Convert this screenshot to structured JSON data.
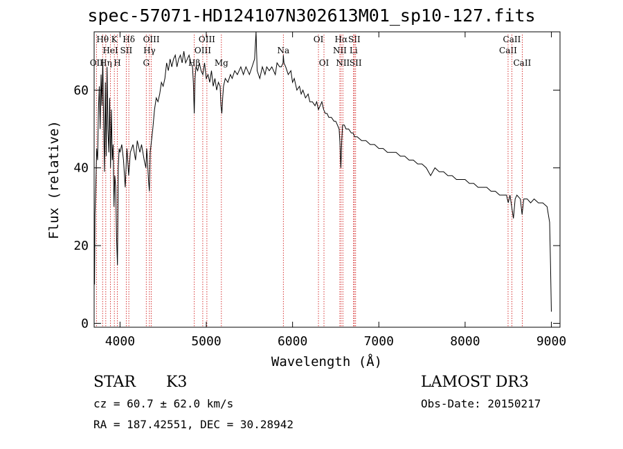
{
  "title": "spec-57071-HD124107N302613M01_sp10-127.fits",
  "chart_data": {
    "type": "line",
    "xlabel": "Wavelength (Å)",
    "ylabel": "Flux (relative)",
    "xlim": [
      3700,
      9100
    ],
    "ylim": [
      -1,
      75
    ],
    "xticks": [
      4000,
      5000,
      6000,
      7000,
      8000,
      9000
    ],
    "yticks": [
      0,
      20,
      40,
      60
    ],
    "series": [
      {
        "name": "spectrum",
        "points": [
          [
            3700,
            22
          ],
          [
            3705,
            10
          ],
          [
            3710,
            28
          ],
          [
            3720,
            36
          ],
          [
            3730,
            45
          ],
          [
            3740,
            42
          ],
          [
            3750,
            55
          ],
          [
            3760,
            61
          ],
          [
            3770,
            50
          ],
          [
            3780,
            64
          ],
          [
            3790,
            56
          ],
          [
            3800,
            68
          ],
          [
            3810,
            52
          ],
          [
            3820,
            39
          ],
          [
            3830,
            62
          ],
          [
            3840,
            43
          ],
          [
            3850,
            66
          ],
          [
            3860,
            50
          ],
          [
            3870,
            44
          ],
          [
            3880,
            58
          ],
          [
            3890,
            40
          ],
          [
            3900,
            55
          ],
          [
            3910,
            42
          ],
          [
            3920,
            46
          ],
          [
            3930,
            30
          ],
          [
            3940,
            38
          ],
          [
            3950,
            35
          ],
          [
            3960,
            22
          ],
          [
            3970,
            15
          ],
          [
            3980,
            40
          ],
          [
            3990,
            45
          ],
          [
            4000,
            44
          ],
          [
            4020,
            46
          ],
          [
            4040,
            42
          ],
          [
            4060,
            35
          ],
          [
            4070,
            40
          ],
          [
            4080,
            45
          ],
          [
            4100,
            38
          ],
          [
            4120,
            44
          ],
          [
            4150,
            46
          ],
          [
            4180,
            42
          ],
          [
            4200,
            47
          ],
          [
            4230,
            44
          ],
          [
            4250,
            46
          ],
          [
            4280,
            42
          ],
          [
            4300,
            40
          ],
          [
            4310,
            45
          ],
          [
            4320,
            41
          ],
          [
            4330,
            37
          ],
          [
            4340,
            34
          ],
          [
            4350,
            44
          ],
          [
            4380,
            50
          ],
          [
            4400,
            55
          ],
          [
            4420,
            58
          ],
          [
            4440,
            57
          ],
          [
            4460,
            59
          ],
          [
            4480,
            62
          ],
          [
            4500,
            61
          ],
          [
            4520,
            63
          ],
          [
            4540,
            67
          ],
          [
            4560,
            65
          ],
          [
            4580,
            68
          ],
          [
            4600,
            66
          ],
          [
            4620,
            68
          ],
          [
            4640,
            69
          ],
          [
            4660,
            66
          ],
          [
            4680,
            68
          ],
          [
            4700,
            69
          ],
          [
            4720,
            67
          ],
          [
            4740,
            70
          ],
          [
            4760,
            67
          ],
          [
            4780,
            68
          ],
          [
            4800,
            69
          ],
          [
            4820,
            67
          ],
          [
            4840,
            66
          ],
          [
            4850,
            62
          ],
          [
            4860,
            54
          ],
          [
            4870,
            63
          ],
          [
            4880,
            66
          ],
          [
            4900,
            65
          ],
          [
            4920,
            67
          ],
          [
            4940,
            65
          ],
          [
            4960,
            64
          ],
          [
            4980,
            67
          ],
          [
            5000,
            63
          ],
          [
            5020,
            64
          ],
          [
            5040,
            62
          ],
          [
            5060,
            65
          ],
          [
            5080,
            61
          ],
          [
            5100,
            63
          ],
          [
            5120,
            60
          ],
          [
            5140,
            62
          ],
          [
            5160,
            61
          ],
          [
            5170,
            56
          ],
          [
            5180,
            54
          ],
          [
            5190,
            58
          ],
          [
            5200,
            61
          ],
          [
            5220,
            63
          ],
          [
            5250,
            62
          ],
          [
            5280,
            64
          ],
          [
            5300,
            63
          ],
          [
            5330,
            65
          ],
          [
            5360,
            64
          ],
          [
            5400,
            66
          ],
          [
            5430,
            64
          ],
          [
            5460,
            66
          ],
          [
            5500,
            64
          ],
          [
            5530,
            66
          ],
          [
            5560,
            68
          ],
          [
            5577,
            75
          ],
          [
            5590,
            65
          ],
          [
            5620,
            63
          ],
          [
            5650,
            66
          ],
          [
            5680,
            64
          ],
          [
            5700,
            66
          ],
          [
            5730,
            65
          ],
          [
            5760,
            66
          ],
          [
            5800,
            64
          ],
          [
            5820,
            67
          ],
          [
            5850,
            66
          ],
          [
            5870,
            66
          ],
          [
            5890,
            67
          ],
          [
            5893,
            69
          ],
          [
            5900,
            67
          ],
          [
            5920,
            66
          ],
          [
            5950,
            64
          ],
          [
            5980,
            65
          ],
          [
            6000,
            62
          ],
          [
            6020,
            63
          ],
          [
            6050,
            60
          ],
          [
            6080,
            61
          ],
          [
            6100,
            59
          ],
          [
            6120,
            60
          ],
          [
            6150,
            58
          ],
          [
            6180,
            59
          ],
          [
            6200,
            57
          ],
          [
            6230,
            57
          ],
          [
            6260,
            56
          ],
          [
            6280,
            57
          ],
          [
            6300,
            55
          ],
          [
            6320,
            56
          ],
          [
            6340,
            57
          ],
          [
            6360,
            55
          ],
          [
            6380,
            54
          ],
          [
            6400,
            54
          ],
          [
            6420,
            53
          ],
          [
            6450,
            53
          ],
          [
            6480,
            52
          ],
          [
            6500,
            52
          ],
          [
            6520,
            51
          ],
          [
            6540,
            50
          ],
          [
            6550,
            46
          ],
          [
            6560,
            40
          ],
          [
            6570,
            47
          ],
          [
            6580,
            51
          ],
          [
            6600,
            51
          ],
          [
            6620,
            50
          ],
          [
            6650,
            50
          ],
          [
            6680,
            49
          ],
          [
            6700,
            49
          ],
          [
            6720,
            48
          ],
          [
            6750,
            48
          ],
          [
            6800,
            47
          ],
          [
            6850,
            47
          ],
          [
            6900,
            46
          ],
          [
            6950,
            46
          ],
          [
            7000,
            45
          ],
          [
            7050,
            45
          ],
          [
            7100,
            44
          ],
          [
            7150,
            44
          ],
          [
            7200,
            44
          ],
          [
            7250,
            43
          ],
          [
            7300,
            43
          ],
          [
            7350,
            42
          ],
          [
            7400,
            42
          ],
          [
            7450,
            41
          ],
          [
            7500,
            41
          ],
          [
            7550,
            40
          ],
          [
            7600,
            38
          ],
          [
            7650,
            40
          ],
          [
            7700,
            39
          ],
          [
            7750,
            39
          ],
          [
            7800,
            38
          ],
          [
            7850,
            38
          ],
          [
            7900,
            37
          ],
          [
            7950,
            37
          ],
          [
            8000,
            37
          ],
          [
            8050,
            36
          ],
          [
            8100,
            36
          ],
          [
            8150,
            35
          ],
          [
            8200,
            35
          ],
          [
            8250,
            35
          ],
          [
            8300,
            34
          ],
          [
            8350,
            34
          ],
          [
            8400,
            33
          ],
          [
            8450,
            33
          ],
          [
            8480,
            33
          ],
          [
            8500,
            31
          ],
          [
            8520,
            33
          ],
          [
            8540,
            30
          ],
          [
            8560,
            27
          ],
          [
            8580,
            32
          ],
          [
            8600,
            33
          ],
          [
            8640,
            32
          ],
          [
            8660,
            28
          ],
          [
            8680,
            32
          ],
          [
            8720,
            32
          ],
          [
            8760,
            31
          ],
          [
            8800,
            32
          ],
          [
            8850,
            31
          ],
          [
            8900,
            31
          ],
          [
            8950,
            30
          ],
          [
            8980,
            26
          ],
          [
            8990,
            15
          ],
          [
            9000,
            3
          ]
        ]
      }
    ],
    "line_markers": [
      {
        "wave": 3727,
        "labels": [
          "OII"
        ],
        "row": 3
      },
      {
        "wave": 3798,
        "labels": [
          "Hθ"
        ],
        "row": 1
      },
      {
        "wave": 3835,
        "labels": [
          "Hη"
        ],
        "row": 3
      },
      {
        "wave": 3889,
        "labels": [
          "HeI"
        ],
        "row": 2
      },
      {
        "wave": 3934,
        "labels": [
          "K"
        ],
        "row": 1
      },
      {
        "wave": 3969,
        "labels": [
          "H"
        ],
        "row": 3
      },
      {
        "wave": 4072,
        "labels": [
          "SII"
        ],
        "row": 2
      },
      {
        "wave": 4102,
        "labels": [
          "Hδ"
        ],
        "row": 1
      },
      {
        "wave": 4304,
        "labels": [
          "G"
        ],
        "row": 3
      },
      {
        "wave": 4341,
        "labels": [
          "Hγ"
        ],
        "row": 2
      },
      {
        "wave": 4363,
        "labels": [
          "OIII"
        ],
        "row": 1
      },
      {
        "wave": 4861,
        "labels": [
          "Hβ"
        ],
        "row": 3
      },
      {
        "wave": 4959,
        "labels": [
          "OIII"
        ],
        "row": 2
      },
      {
        "wave": 5007,
        "labels": [
          "OIII"
        ],
        "row": 1
      },
      {
        "wave": 5175,
        "labels": [
          "Mg"
        ],
        "row": 3
      },
      {
        "wave": 5893,
        "labels": [
          "Na"
        ],
        "row": 2
      },
      {
        "wave": 6300,
        "labels": [
          "OI"
        ],
        "row": 1
      },
      {
        "wave": 6364,
        "labels": [
          "OI"
        ],
        "row": 3
      },
      {
        "wave": 6548,
        "labels": [
          "NII"
        ],
        "row": 2
      },
      {
        "wave": 6563,
        "labels": [
          "Hα"
        ],
        "row": 1
      },
      {
        "wave": 6583,
        "labels": [
          "NII"
        ],
        "row": 3
      },
      {
        "wave": 6707,
        "labels": [
          "Li"
        ],
        "row": 2
      },
      {
        "wave": 6716,
        "labels": [
          "SII"
        ],
        "row": 1
      },
      {
        "wave": 6731,
        "labels": [
          "SII"
        ],
        "row": 3
      },
      {
        "wave": 8498,
        "labels": [
          "CaII"
        ],
        "row": 2
      },
      {
        "wave": 8542,
        "labels": [
          "CaII"
        ],
        "row": 1
      },
      {
        "wave": 8662,
        "labels": [
          "CaII"
        ],
        "row": 3
      }
    ]
  },
  "info": {
    "class_label": "STAR",
    "subclass": "K3",
    "survey": "LAMOST DR3",
    "cz": "cz = 60.7 ± 62.0 km/s",
    "obs_date": "Obs-Date: 20150217",
    "coords": "RA = 187.42551, DEC =  30.28942"
  },
  "colors": {
    "spectrum": "#000000",
    "marker": "#cc0000",
    "axis": "#000000"
  }
}
